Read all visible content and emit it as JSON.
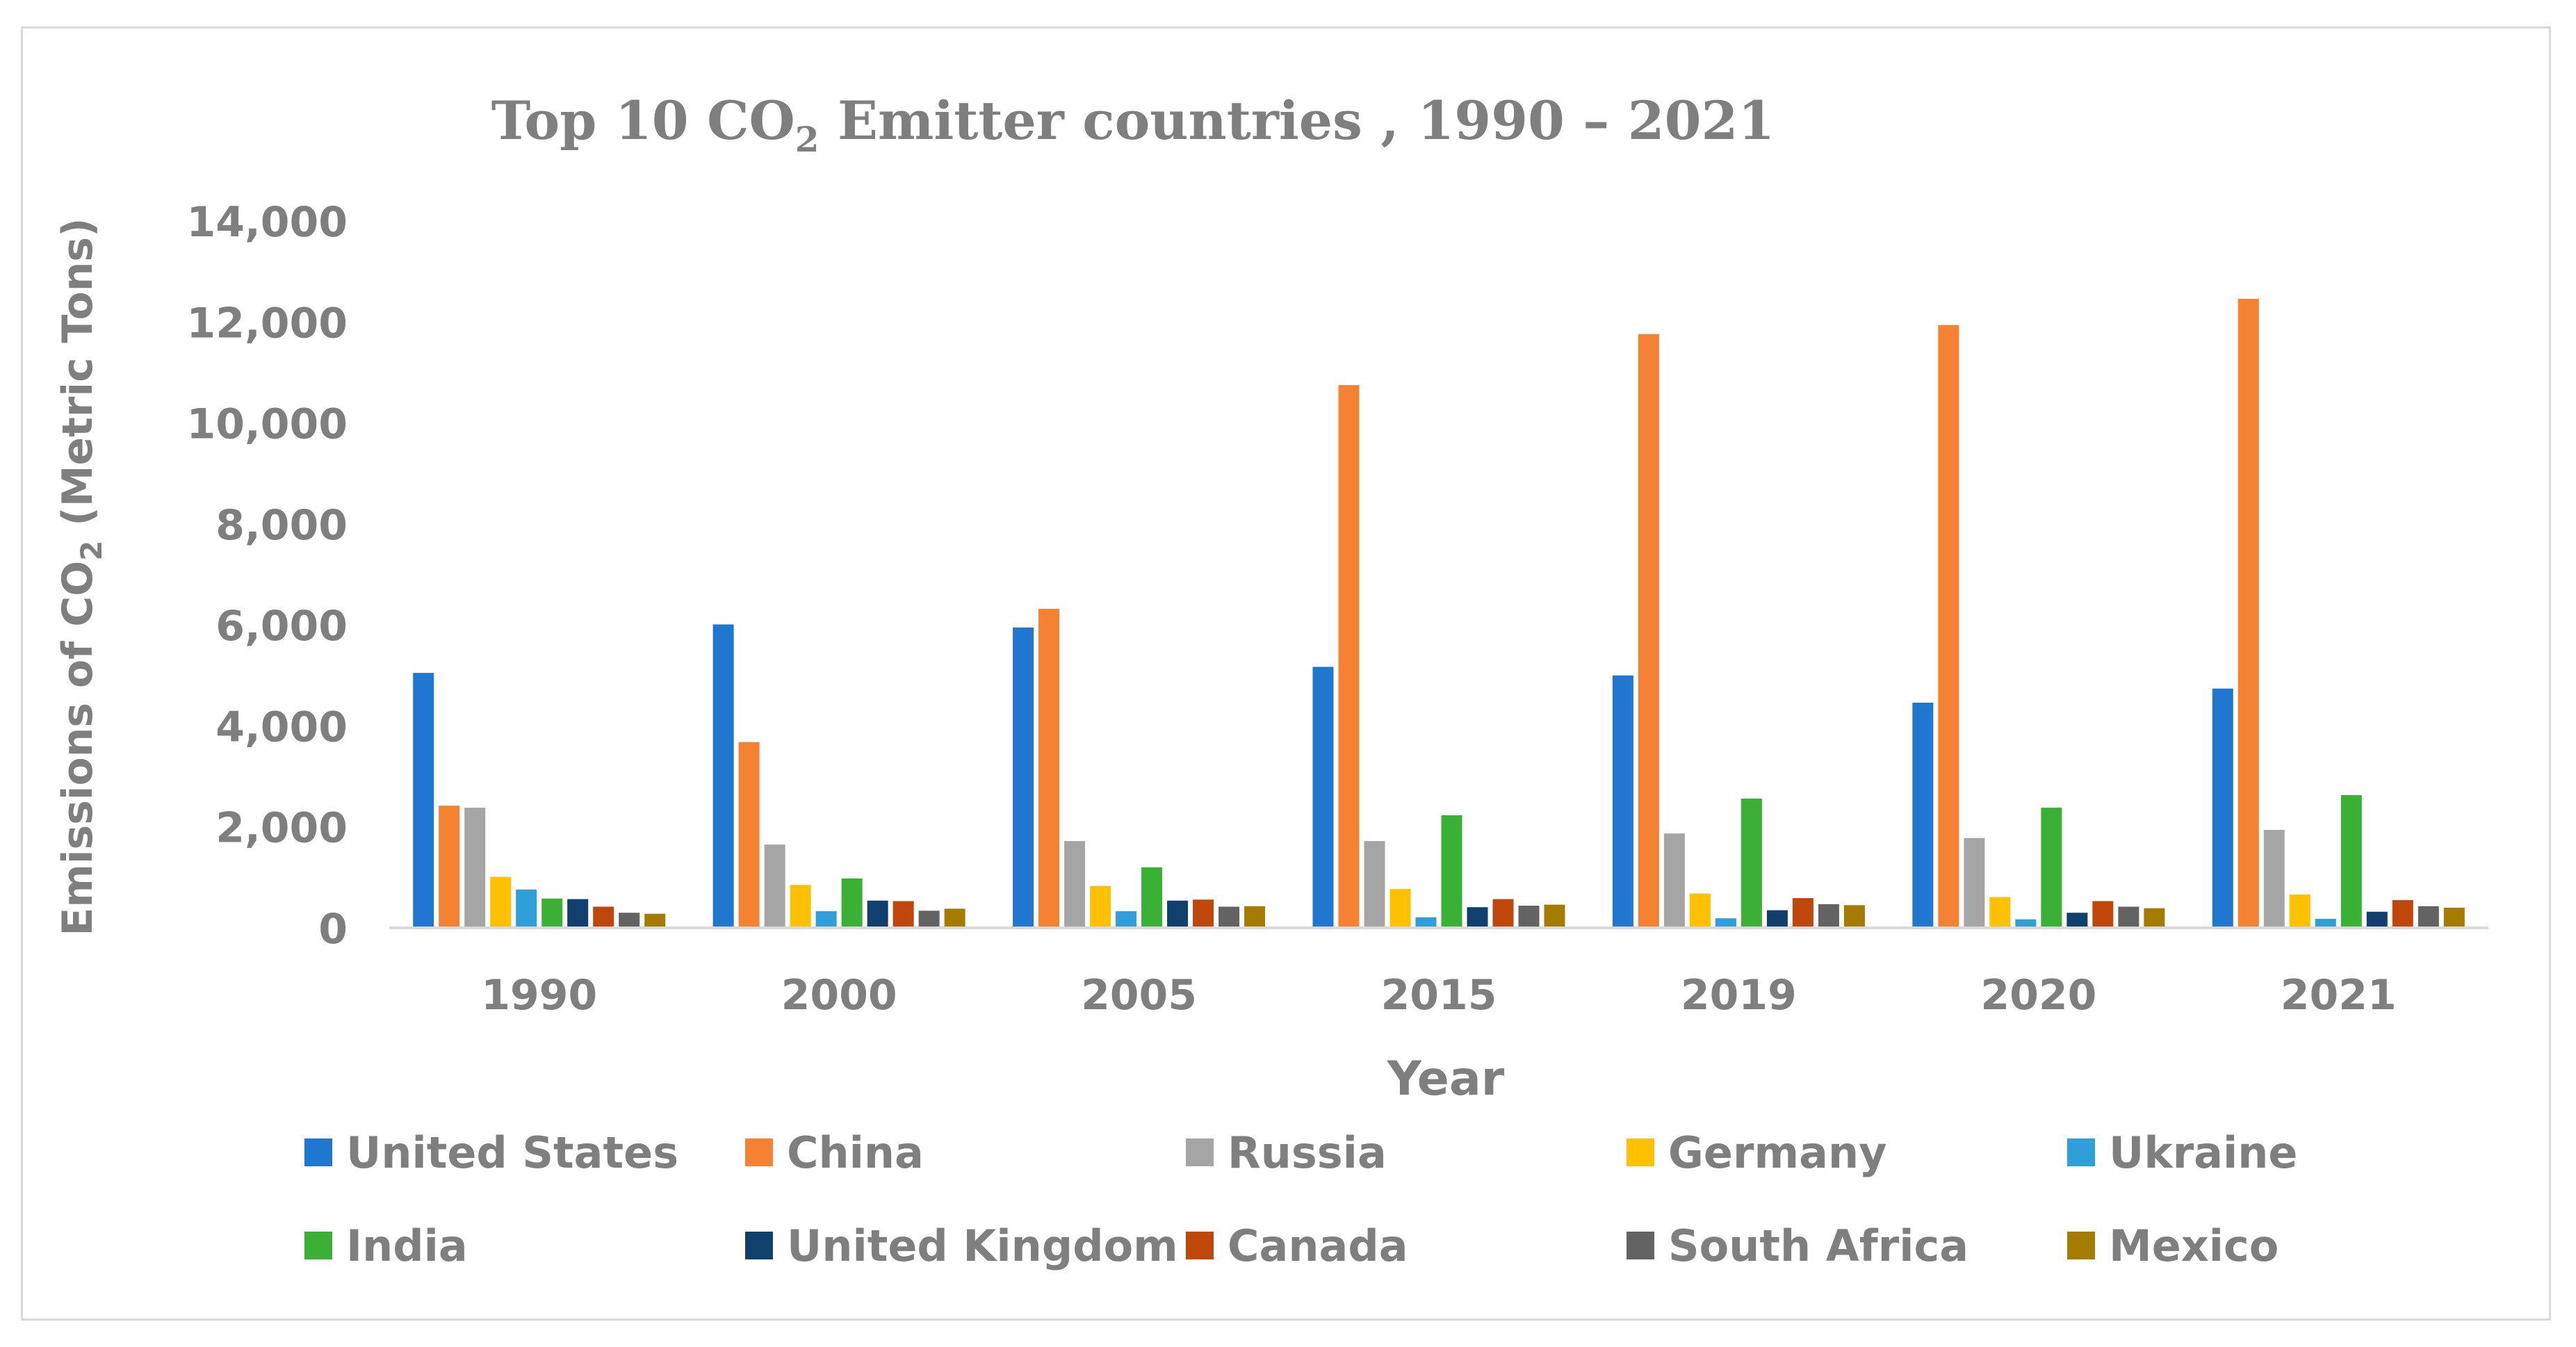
{
  "chart_data": {
    "type": "bar",
    "title": "Top 10 CO₂ Emitter countries , 1990 – 2021",
    "title_parts": {
      "main": "Top 10 CO",
      "sub": "2",
      "rest": " Emitter countries , 1990 ",
      "dash": "–",
      "tail": " 2021"
    },
    "xlabel": "Year",
    "ylabel": "Emissions of CO₂ (Metric Tons)",
    "ylabel_parts": {
      "main": "Emissions of CO",
      "sub": "2",
      "rest": " (Metric Tons)"
    },
    "ylim": [
      0,
      14000
    ],
    "yticks": [
      0,
      2000,
      4000,
      6000,
      8000,
      10000,
      12000,
      14000
    ],
    "ytick_labels": [
      "0",
      "2,000",
      "4,000",
      "6,000",
      "8,000",
      "10,000",
      "12,000",
      "14,000"
    ],
    "grid": false,
    "legend_position": "bottom",
    "categories": [
      "1990",
      "2000",
      "2005",
      "2015",
      "2019",
      "2020",
      "2021"
    ],
    "series": [
      {
        "name": "United States",
        "color": "#1f77d0",
        "values": [
          5050,
          6010,
          5950,
          5170,
          5000,
          4460,
          4740
        ]
      },
      {
        "name": "China",
        "color": "#f58232",
        "values": [
          2420,
          3680,
          6320,
          10750,
          11760,
          11940,
          12460
        ]
      },
      {
        "name": "Russia",
        "color": "#a5a5a5",
        "values": [
          2380,
          1650,
          1720,
          1720,
          1870,
          1780,
          1940
        ]
      },
      {
        "name": "Germany",
        "color": "#ffc000",
        "values": [
          1010,
          850,
          830,
          770,
          680,
          610,
          660
        ]
      },
      {
        "name": "Ukraine",
        "color": "#2f9fd9",
        "values": [
          760,
          330,
          330,
          210,
          190,
          170,
          180
        ]
      },
      {
        "name": "India",
        "color": "#3ab034",
        "values": [
          580,
          980,
          1200,
          2230,
          2560,
          2380,
          2630
        ]
      },
      {
        "name": "United Kingdom",
        "color": "#12406e",
        "values": [
          570,
          540,
          540,
          410,
          350,
          300,
          320
        ]
      },
      {
        "name": "Canada",
        "color": "#c0470c",
        "values": [
          420,
          530,
          560,
          570,
          590,
          530,
          550
        ]
      },
      {
        "name": "South Africa",
        "color": "#636363",
        "values": [
          300,
          340,
          420,
          440,
          470,
          420,
          430
        ]
      },
      {
        "name": "Mexico",
        "color": "#a67c00",
        "values": [
          280,
          380,
          430,
          460,
          450,
          390,
          400
        ]
      }
    ]
  }
}
